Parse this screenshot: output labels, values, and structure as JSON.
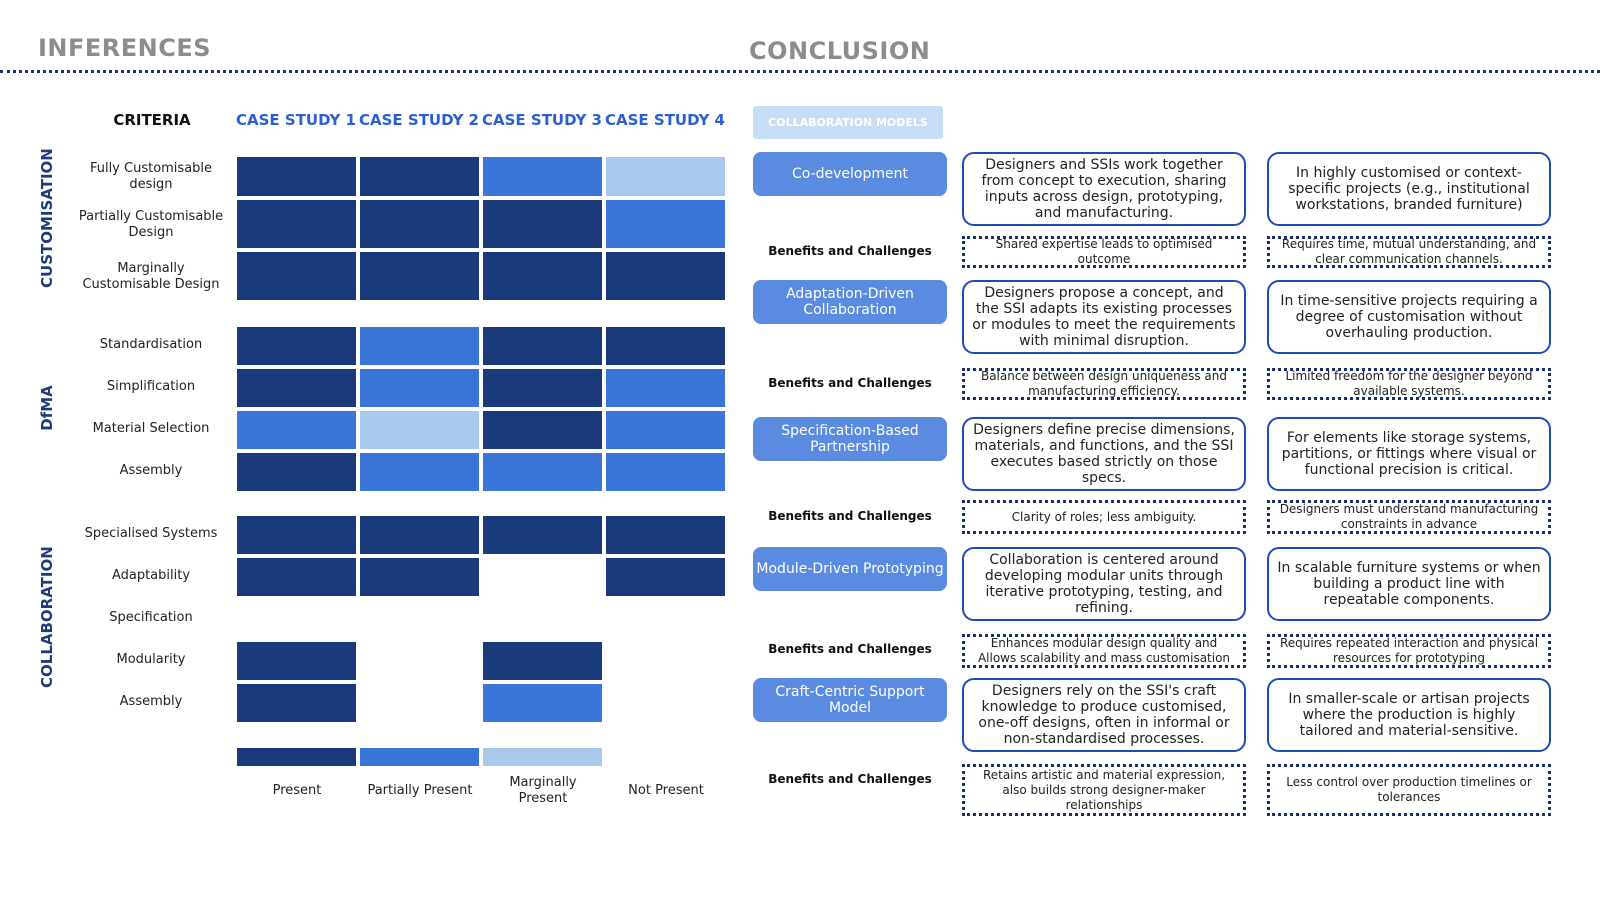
{
  "titles": {
    "left": "INFERENCES",
    "right": "CONCLUSION"
  },
  "colors": {
    "present": "#1a3a7a",
    "partially_present": "#3b75d8",
    "marginally_present": "#a8c8ec",
    "not_present": "#ffffff"
  },
  "headers": {
    "criteria": "CRITERIA",
    "cases": [
      "CASE STUDY 1",
      "CASE STUDY 2",
      "CASE STUDY 3",
      "CASE STUDY 4"
    ]
  },
  "groups": [
    {
      "label": "CUSTOMISATION",
      "rows": [
        {
          "label": "Fully Customisable design",
          "cells": [
            "present",
            "present",
            "partially_present",
            "marginally_present"
          ]
        },
        {
          "label": "Partially Customisable Design",
          "cells": [
            "present",
            "present",
            "present",
            "partially_present"
          ]
        },
        {
          "label": "Marginally Customisable Design",
          "cells": [
            "present",
            "present",
            "present",
            "present"
          ]
        }
      ]
    },
    {
      "label": "DfMA",
      "rows": [
        {
          "label": "Standardisation",
          "cells": [
            "present",
            "partially_present",
            "present",
            "present"
          ]
        },
        {
          "label": "Simplification",
          "cells": [
            "present",
            "partially_present",
            "present",
            "partially_present"
          ]
        },
        {
          "label": "Material Selection",
          "cells": [
            "partially_present",
            "marginally_present",
            "present",
            "partially_present"
          ]
        },
        {
          "label": "Assembly",
          "cells": [
            "present",
            "partially_present",
            "partially_present",
            "partially_present"
          ]
        }
      ]
    },
    {
      "label": "COLLABORATION",
      "rows": [
        {
          "label": "Specialised Systems",
          "cells": [
            "present",
            "present",
            "present",
            "present"
          ]
        },
        {
          "label": "Adaptability",
          "cells": [
            "present",
            "present",
            "not_present",
            "present"
          ]
        },
        {
          "label": "Specification",
          "cells": [
            "not_present",
            "not_present",
            "not_present",
            "not_present"
          ]
        },
        {
          "label": "Modularity",
          "cells": [
            "present",
            "not_present",
            "present",
            "not_present"
          ]
        },
        {
          "label": "Assembly",
          "cells": [
            "present",
            "not_present",
            "partially_present",
            "not_present"
          ]
        }
      ]
    }
  ],
  "legend": [
    {
      "key": "present",
      "label": "Present"
    },
    {
      "key": "partially_present",
      "label": "Partially Present"
    },
    {
      "key": "marginally_present",
      "label": "Marginally Present"
    },
    {
      "key": "not_present",
      "label": "Not Present"
    }
  ],
  "conclusion": {
    "header": "COLLABORATION MODELS",
    "bc_label": "Benefits and Challenges",
    "models": [
      {
        "name": "Co-development",
        "description": "Designers and SSIs work together from concept to execution, sharing inputs across design, prototyping, and manufacturing.",
        "application": "In highly customised or context-specific projects (e.g., institutional workstations, branded furniture)",
        "benefit": "Shared expertise leads to optimised outcome",
        "challenge": "Requires time, mutual understanding, and clear communication channels."
      },
      {
        "name": "Adaptation-Driven Collaboration",
        "description": "Designers propose a concept, and the SSI adapts its existing processes or modules to meet the requirements with minimal disruption.",
        "application": "In time-sensitive projects requiring a degree of customisation without overhauling production.",
        "benefit": "Balance between design uniqueness and manufacturing efficiency.",
        "challenge": "Limited freedom for the designer beyond available systems."
      },
      {
        "name": "Specification-Based Partnership",
        "description": "Designers define precise dimensions, materials, and functions, and the SSI executes based strictly on those specs.",
        "application": "For elements like storage systems, partitions, or fittings where visual or functional precision is critical.",
        "benefit": "Clarity of roles; less ambiguity.",
        "challenge": "Designers must understand manufacturing constraints in advance"
      },
      {
        "name": "Module-Driven Prototyping",
        "description": "Collaboration is centered around developing modular units through iterative prototyping, testing, and refining.",
        "application": "In scalable furniture systems or when building a product line with repeatable components.",
        "benefit": "Enhances modular design quality and Allows scalability and mass customisation",
        "challenge": "Requires repeated interaction and physical resources for prototyping"
      },
      {
        "name": "Craft-Centric Support Model",
        "description": "Designers rely on the SSI's craft knowledge to produce customised, one-off designs, often in informal or non-standardised processes.",
        "application": "In smaller-scale or artisan projects where the production is highly tailored and material-sensitive.",
        "benefit": "Retains artistic and material expression, also builds strong designer-maker relationships",
        "challenge": "Less control over production timelines or tolerances"
      }
    ]
  }
}
